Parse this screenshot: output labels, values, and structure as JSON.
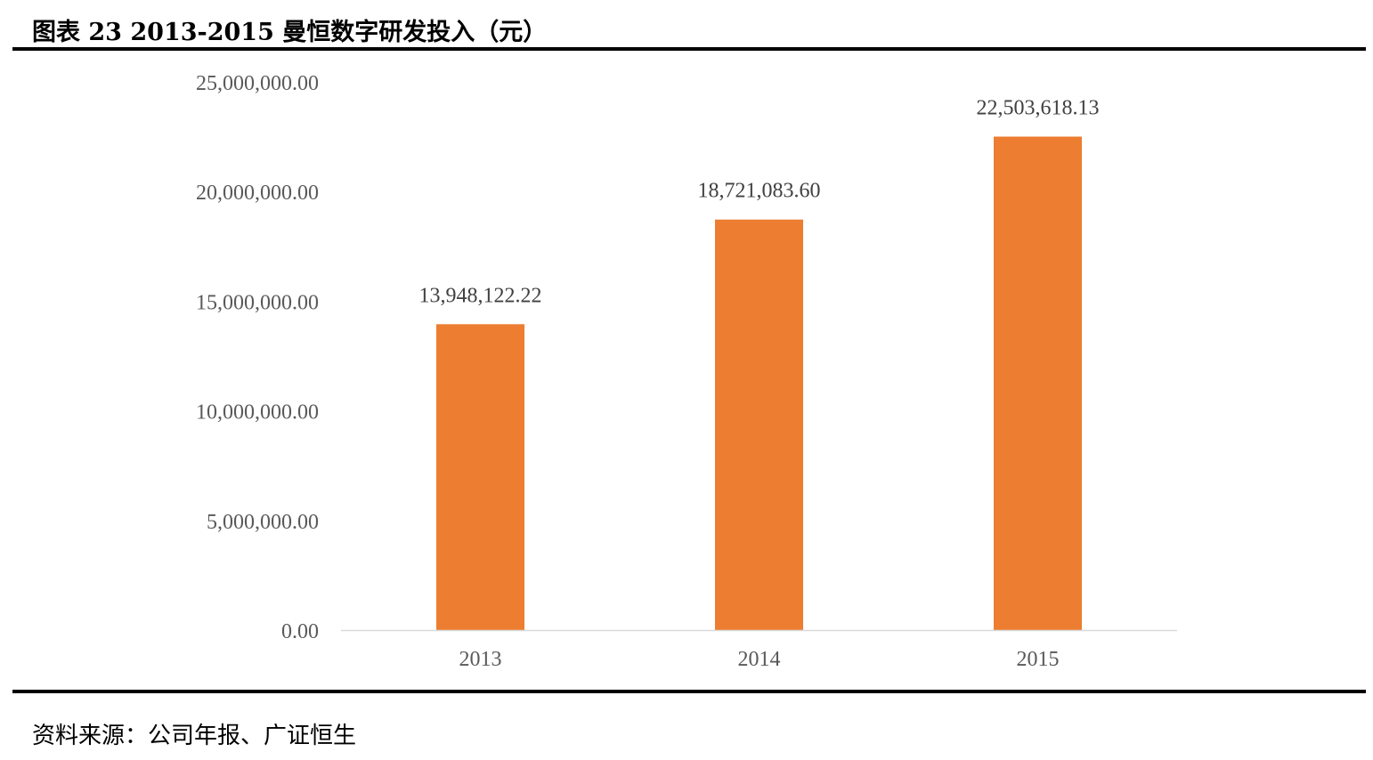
{
  "chart_data": {
    "type": "bar",
    "title": "图表 23 2013-2015 曼恒数字研发投入（元）",
    "categories": [
      "2013",
      "2014",
      "2015"
    ],
    "values": [
      13948122.22,
      18721083.6,
      22503618.13
    ],
    "data_labels": [
      "13,948,122.22",
      "18,721,083.60",
      "22,503,618.13"
    ],
    "y_ticks": [
      0,
      5000000,
      10000000,
      15000000,
      20000000,
      25000000
    ],
    "y_tick_labels": [
      "0.00",
      "5,000,000.00",
      "10,000,000.00",
      "15,000,000.00",
      "20,000,000.00",
      "25,000,000.00"
    ],
    "ylim": [
      0,
      25000000
    ],
    "xlabel": "",
    "ylabel": "",
    "grid": false,
    "legend": "none",
    "bar_color": "#ED7D31",
    "source": "资料来源：公司年报、广证恒生"
  }
}
